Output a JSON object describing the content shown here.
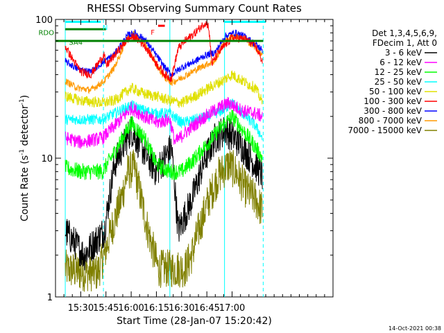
{
  "chart_data": {
    "type": "line",
    "title": "RHESSI Observing Summary Count Rates",
    "xlabel": "Start Time (28-Jan-07 15:20:42)",
    "ylabel": "Count Rate (s⁻¹ detector⁻¹)",
    "ylabel_parts": {
      "main": "Count Rate (s",
      "sup1": "-1",
      "mid": " detector",
      "sup2": "-1",
      "end": ")"
    },
    "yscale": "log",
    "ylim": [
      1,
      100
    ],
    "xlim_minutes_of_day": [
      915,
      1080
    ],
    "ytick_labels": [
      "1",
      "10",
      "100"
    ],
    "xtick_labels": [
      "15:30",
      "15:45",
      "16:00",
      "16:15",
      "16:30",
      "16:45",
      "17:00"
    ],
    "xtick_minutes": [
      930,
      945,
      960,
      975,
      990,
      1005,
      1020
    ],
    "legend_title": [
      "Det 1,3,4,5,6,9,",
      "FDecim 1, Att 0"
    ],
    "footer_date": "14-Oct-2021 00:38",
    "flags": {
      "night_label": "N",
      "flare_label": "F",
      "rdo_label": "RDO",
      "saa_label": "SA4"
    },
    "vertical_markers_minutes": [
      {
        "t": 920.8,
        "color": "#00ffff",
        "style": "solid"
      },
      {
        "t": 943.5,
        "color": "#00ffff",
        "style": "dashed"
      },
      {
        "t": 983.0,
        "color": "#00ffff",
        "style": "solid"
      },
      {
        "t": 1015.5,
        "color": "#00ffff",
        "style": "solid"
      },
      {
        "t": 1038.5,
        "color": "#00ffff",
        "style": "dashed"
      }
    ],
    "series": [
      {
        "name": "3 - 6 keV",
        "color": "#000000",
        "anchors": [
          [
            920.8,
            3.0
          ],
          [
            932,
            2.0
          ],
          [
            944,
            3.0
          ],
          [
            950,
            9
          ],
          [
            960,
            16
          ],
          [
            968,
            11
          ],
          [
            975,
            8
          ],
          [
            984,
            12
          ],
          [
            988,
            3
          ],
          [
            996,
            5
          ],
          [
            1004,
            10
          ],
          [
            1010,
            14
          ],
          [
            1016,
            16
          ],
          [
            1024,
            13
          ],
          [
            1031,
            10
          ],
          [
            1035,
            8.5
          ],
          [
            1038,
            7.5
          ]
        ]
      },
      {
        "name": "6 - 12 keV",
        "color": "#ff00ff",
        "anchors": [
          [
            920.8,
            14
          ],
          [
            930,
            13
          ],
          [
            943,
            14
          ],
          [
            950,
            17
          ],
          [
            960,
            23
          ],
          [
            968,
            20
          ],
          [
            975,
            18
          ],
          [
            983,
            19
          ],
          [
            986,
            13
          ],
          [
            994,
            16
          ],
          [
            1004,
            20
          ],
          [
            1012,
            23
          ],
          [
            1018,
            25
          ],
          [
            1026,
            22
          ],
          [
            1034,
            21
          ],
          [
            1038,
            20
          ]
        ]
      },
      {
        "name": "12 - 25 keV",
        "color": "#00ff00",
        "anchors": [
          [
            920.8,
            8.5
          ],
          [
            930,
            8
          ],
          [
            943,
            8
          ],
          [
            950,
            11
          ],
          [
            960,
            18
          ],
          [
            968,
            14
          ],
          [
            975,
            9
          ],
          [
            983,
            8
          ],
          [
            990,
            8
          ],
          [
            998,
            10
          ],
          [
            1006,
            13
          ],
          [
            1014,
            17
          ],
          [
            1020,
            20
          ],
          [
            1028,
            15
          ],
          [
            1034,
            12
          ],
          [
            1038,
            10
          ]
        ]
      },
      {
        "name": "25 - 50 keV",
        "color": "#00ffff",
        "anchors": [
          [
            920.8,
            19
          ],
          [
            930,
            19
          ],
          [
            943,
            19
          ],
          [
            950,
            21
          ],
          [
            960,
            24
          ],
          [
            968,
            22
          ],
          [
            975,
            21
          ],
          [
            983,
            21
          ],
          [
            990,
            18
          ],
          [
            998,
            19
          ],
          [
            1006,
            20
          ],
          [
            1014,
            22
          ],
          [
            1020,
            25
          ],
          [
            1028,
            20
          ],
          [
            1034,
            17
          ],
          [
            1038,
            14
          ]
        ]
      },
      {
        "name": "50 - 100 keV",
        "color": "#e0e000",
        "anchors": [
          [
            920.8,
            28
          ],
          [
            930,
            26
          ],
          [
            943,
            25
          ],
          [
            950,
            26
          ],
          [
            960,
            32
          ],
          [
            968,
            29
          ],
          [
            975,
            28
          ],
          [
            983,
            26
          ],
          [
            990,
            25
          ],
          [
            998,
            28
          ],
          [
            1006,
            32
          ],
          [
            1014,
            36
          ],
          [
            1020,
            40
          ],
          [
            1028,
            35
          ],
          [
            1034,
            32
          ],
          [
            1038,
            25
          ]
        ]
      },
      {
        "name": "100 - 300 keV",
        "color": "#ff0000",
        "anchors": [
          [
            920.8,
            64
          ],
          [
            925,
            52
          ],
          [
            930,
            42
          ],
          [
            936,
            40
          ],
          [
            944,
            56
          ],
          [
            945,
            46
          ],
          [
            950,
            55
          ],
          [
            958,
            72
          ],
          [
            962,
            75
          ],
          [
            968,
            65
          ],
          [
            975,
            48
          ],
          [
            980,
            40
          ],
          [
            983,
            38
          ],
          [
            984,
            38
          ],
          [
            988,
            62
          ],
          [
            992,
            70
          ],
          [
            998,
            80
          ],
          [
            1004,
            95
          ],
          [
            1006,
            90
          ],
          [
            1008,
            48
          ],
          [
            1012,
            58
          ],
          [
            1020,
            74
          ],
          [
            1028,
            72
          ],
          [
            1034,
            64
          ],
          [
            1038,
            50
          ]
        ]
      },
      {
        "name": "300 - 800 keV",
        "color": "#0000ff",
        "anchors": [
          [
            920.8,
            50
          ],
          [
            928,
            44
          ],
          [
            936,
            42
          ],
          [
            944,
            50
          ],
          [
            950,
            56
          ],
          [
            958,
            77
          ],
          [
            962,
            80
          ],
          [
            968,
            72
          ],
          [
            975,
            55
          ],
          [
            980,
            45
          ],
          [
            984,
            40
          ],
          [
            990,
            45
          ],
          [
            998,
            50
          ],
          [
            1004,
            55
          ],
          [
            1010,
            58
          ],
          [
            1016,
            76
          ],
          [
            1022,
            80
          ],
          [
            1028,
            75
          ],
          [
            1034,
            66
          ],
          [
            1038,
            60
          ]
        ]
      },
      {
        "name": "800 - 7000 keV",
        "color": "#ff9900",
        "anchors": [
          [
            920.8,
            36
          ],
          [
            928,
            32
          ],
          [
            936,
            31
          ],
          [
            944,
            36
          ],
          [
            950,
            45
          ],
          [
            958,
            75
          ],
          [
            962,
            78
          ],
          [
            968,
            68
          ],
          [
            975,
            47
          ],
          [
            980,
            38
          ],
          [
            984,
            35
          ],
          [
            990,
            38
          ],
          [
            998,
            43
          ],
          [
            1004,
            47
          ],
          [
            1010,
            50
          ],
          [
            1016,
            72
          ],
          [
            1022,
            76
          ],
          [
            1028,
            72
          ],
          [
            1034,
            62
          ],
          [
            1038,
            55
          ]
        ]
      },
      {
        "name": "7000 - 15000 keV",
        "color": "#808000",
        "anchors": [
          [
            920.8,
            1.6
          ],
          [
            930,
            1.5
          ],
          [
            940,
            1.5
          ],
          [
            944,
            2.0
          ],
          [
            948,
            3.0
          ],
          [
            954,
            5
          ],
          [
            958,
            8
          ],
          [
            962,
            8.5
          ],
          [
            966,
            5
          ],
          [
            970,
            3
          ],
          [
            976,
            1.6
          ],
          [
            985,
            1.6
          ],
          [
            992,
            1.6
          ],
          [
            996,
            2.0
          ],
          [
            1000,
            3
          ],
          [
            1006,
            5
          ],
          [
            1012,
            7.5
          ],
          [
            1018,
            9
          ],
          [
            1022,
            8
          ],
          [
            1028,
            6
          ],
          [
            1034,
            5
          ],
          [
            1038,
            4.2
          ]
        ]
      }
    ]
  }
}
